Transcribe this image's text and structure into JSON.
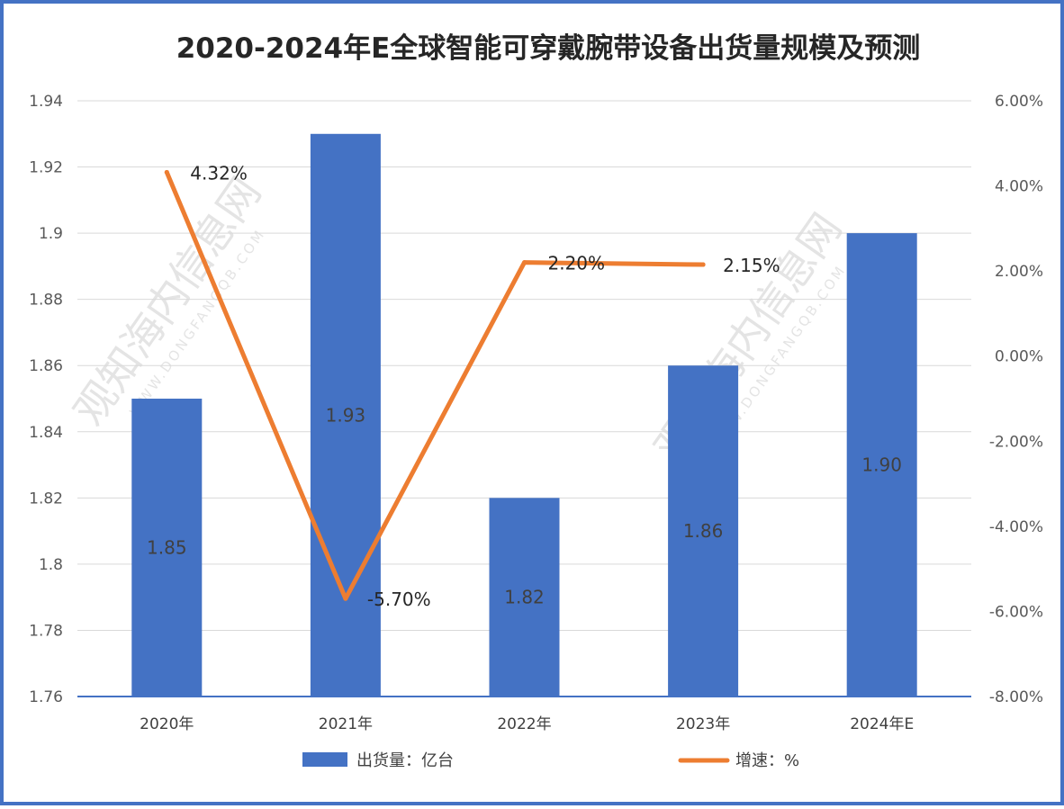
{
  "watermark": {
    "main": "观知海内信息网",
    "sub": "WWW.DONGFANGQB.COM"
  },
  "chart_data": {
    "type": "bar",
    "title": "2020-2024年E全球智能可穿戴腕带设备出货量规模及预测",
    "categories": [
      "2020年",
      "2021年",
      "2022年",
      "2023年",
      "2024年E"
    ],
    "series": [
      {
        "name": "出货量：亿台",
        "type": "bar",
        "axis": "left",
        "color": "#4472c4",
        "values": [
          1.85,
          1.93,
          1.82,
          1.86,
          1.9
        ],
        "labels": [
          "1.85",
          "1.93",
          "1.82",
          "1.86",
          "1.90"
        ]
      },
      {
        "name": "增速：%",
        "type": "line",
        "axis": "right",
        "color": "#ed7d31",
        "values": [
          4.32,
          -5.7,
          2.2,
          2.15,
          null
        ],
        "labels": [
          "4.32%",
          "-5.70%",
          "2.20%",
          "2.15%",
          ""
        ]
      }
    ],
    "y_left": {
      "min": 1.76,
      "max": 1.94,
      "step": 0.02,
      "tick_labels": [
        "1.76",
        "1.78",
        "1.8",
        "1.82",
        "1.84",
        "1.86",
        "1.88",
        "1.9",
        "1.92",
        "1.94"
      ]
    },
    "y_right": {
      "min": -8,
      "max": 6,
      "step": 2,
      "tick_labels": [
        "-8.00%",
        "-6.00%",
        "-4.00%",
        "-2.00%",
        "0.00%",
        "2.00%",
        "4.00%",
        "6.00%"
      ]
    },
    "grid": true,
    "legend_position": "bottom"
  }
}
